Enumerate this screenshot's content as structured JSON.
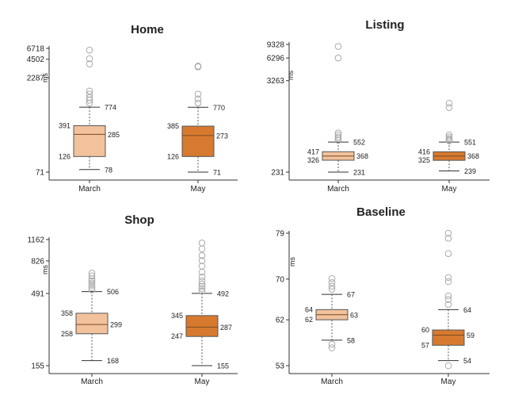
{
  "colors": {
    "march": "#f1c29c",
    "may": "#d77a2f",
    "outlier": "#aaaaaa",
    "line": "#555555"
  },
  "chart_data": [
    {
      "type": "boxplot",
      "title": "Home",
      "ylabel": "ms",
      "scale": "log",
      "yticks": [
        71,
        2287,
        4502,
        6718
      ],
      "ylim": [
        71,
        6718
      ],
      "categories": [
        "March",
        "May"
      ],
      "series": [
        {
          "category": "March",
          "whisker_low": 78,
          "q1": 126,
          "median": 285,
          "q3": 391,
          "whisker_high": 774,
          "outliers": [
            900,
            1000,
            1100,
            1250,
            1400,
            3800,
            4600,
            6300
          ]
        },
        {
          "category": "May",
          "whisker_low": 71,
          "q1": 126,
          "median": 273,
          "q3": 385,
          "whisker_high": 770,
          "outliers": [
            900,
            1050,
            1250,
            3400,
            3500
          ]
        }
      ]
    },
    {
      "type": "boxplot",
      "title": "Listing",
      "ylabel": "ms",
      "scale": "log",
      "yticks": [
        231,
        3263,
        6296,
        9328
      ],
      "ylim": [
        231,
        9328
      ],
      "categories": [
        "March",
        "May"
      ],
      "series": [
        {
          "category": "March",
          "whisker_low": 231,
          "q1": 326,
          "median": 368,
          "q3": 417,
          "whisker_high": 552,
          "outliers": [
            580,
            610,
            640,
            680,
            720,
            6300,
            8800
          ]
        },
        {
          "category": "May",
          "whisker_low": 239,
          "q1": 325,
          "median": 368,
          "q3": 416,
          "whisker_high": 551,
          "outliers": [
            570,
            590,
            610,
            640,
            680,
            1500,
            1700
          ]
        }
      ]
    },
    {
      "type": "boxplot",
      "title": "Shop",
      "ylabel": "ms",
      "scale": "log",
      "yticks": [
        155,
        491,
        826,
        1162
      ],
      "ylim": [
        155,
        1162
      ],
      "categories": [
        "March",
        "May"
      ],
      "series": [
        {
          "category": "March",
          "whisker_low": 168,
          "q1": 258,
          "median": 299,
          "q3": 358,
          "whisker_high": 506,
          "outliers": [
            520,
            540,
            560,
            580,
            600,
            620,
            650,
            680
          ]
        },
        {
          "category": "May",
          "whisker_low": 155,
          "q1": 247,
          "median": 287,
          "q3": 345,
          "whisker_high": 492,
          "outliers": [
            510,
            530,
            550,
            570,
            600,
            640,
            690,
            760,
            830,
            900,
            1000,
            1100
          ]
        }
      ]
    },
    {
      "type": "boxplot",
      "title": "Baseline",
      "ylabel": "ms",
      "scale": "linear",
      "yticks": [
        53,
        62,
        70,
        79
      ],
      "ylim": [
        53,
        79
      ],
      "categories": [
        "March",
        "May"
      ],
      "series": [
        {
          "category": "March",
          "whisker_low": 58,
          "q1": 62,
          "median": 63,
          "q3": 64,
          "whisker_high": 67,
          "outliers": [
            56.5,
            57.2,
            68,
            68.6,
            69.3,
            70.1
          ]
        },
        {
          "category": "May",
          "whisker_low": 54,
          "q1": 57,
          "median": 59,
          "q3": 60,
          "whisker_high": 64,
          "outliers": [
            53,
            65,
            66,
            66.7,
            69.5,
            70.3,
            75,
            78,
            79
          ]
        }
      ]
    }
  ]
}
